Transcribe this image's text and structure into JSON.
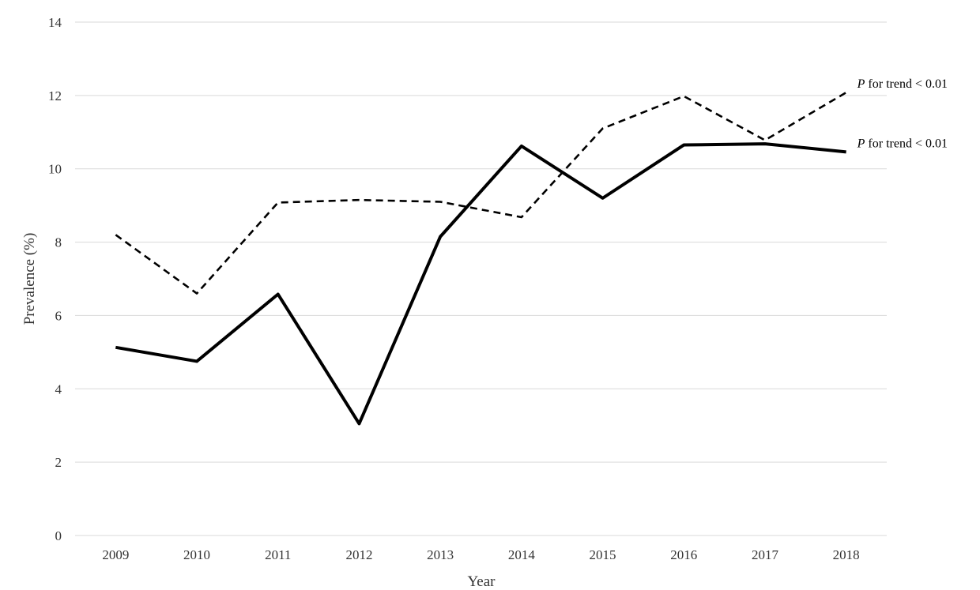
{
  "chart_data": {
    "type": "line",
    "x": [
      "2009",
      "2010",
      "2011",
      "2012",
      "2013",
      "2014",
      "2015",
      "2016",
      "2017",
      "2018"
    ],
    "series": [
      {
        "style": "dashed",
        "values": [
          8.2,
          6.6,
          9.08,
          9.15,
          9.1,
          8.68,
          11.1,
          11.98,
          10.78,
          12.08
        ],
        "annotation_italic": "P",
        "annotation_rest": " for trend < 0.01"
      },
      {
        "style": "solid",
        "values": [
          5.13,
          4.75,
          6.58,
          3.05,
          8.15,
          10.62,
          9.2,
          10.65,
          10.68,
          10.46
        ],
        "annotation_italic": "P",
        "annotation_rest": " for trend < 0.01"
      }
    ],
    "xlabel": "Year",
    "ylabel": "Prevalence (%)",
    "ylim": [
      0,
      14
    ],
    "yticks": [
      "0",
      "2",
      "4",
      "6",
      "8",
      "10",
      "12",
      "14"
    ],
    "grid": true,
    "legend": "none"
  }
}
